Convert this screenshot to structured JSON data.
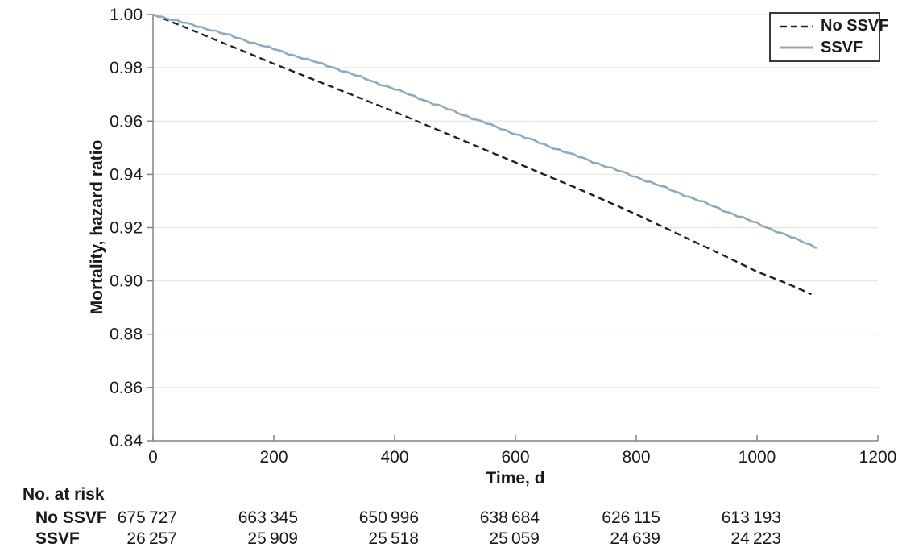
{
  "figure": {
    "xlabel": "Time, d",
    "ylabel": "Mortality, hazard ratio",
    "legend": [
      {
        "label": "No SSVF",
        "style": "dashed",
        "color": "#222222"
      },
      {
        "label": "SSVF",
        "style": "solid",
        "color": "#8faabe"
      }
    ]
  },
  "chart_data": {
    "type": "line",
    "title": "",
    "xlabel": "Time, d",
    "ylabel": "Mortality, hazard ratio",
    "xlim": [
      0,
      1200
    ],
    "ylim": [
      0.84,
      1.0
    ],
    "x_ticks": [
      0,
      200,
      400,
      600,
      800,
      1000,
      1200
    ],
    "y_ticks": [
      0.84,
      0.86,
      0.88,
      0.9,
      0.92,
      0.94,
      0.96,
      0.98,
      1.0
    ],
    "y_tick_labels": [
      "0.84",
      "0.86",
      "0.88",
      "0.90",
      "0.92",
      "0.94",
      "0.96",
      "0.98",
      "1.00"
    ],
    "grid": "horizontal",
    "legend_position": "top-right",
    "colors": {
      "grid": "#e8e8e8",
      "axis": "#828282",
      "text": "#1a1a1a"
    },
    "series": [
      {
        "name": "No SSVF",
        "style": "dashed",
        "color": "#222222",
        "x": [
          0,
          50,
          100,
          150,
          200,
          250,
          300,
          350,
          400,
          450,
          500,
          550,
          600,
          650,
          700,
          750,
          800,
          850,
          900,
          950,
          1000,
          1050,
          1090
        ],
        "y": [
          1.0,
          0.9955,
          0.9908,
          0.9862,
          0.9815,
          0.977,
          0.9725,
          0.968,
          0.9635,
          0.9587,
          0.954,
          0.9492,
          0.9445,
          0.9397,
          0.935,
          0.93,
          0.925,
          0.9197,
          0.9143,
          0.909,
          0.9035,
          0.899,
          0.895
        ]
      },
      {
        "name": "SSVF",
        "style": "solid",
        "color": "#8faabe",
        "x": [
          0,
          50,
          100,
          150,
          200,
          250,
          300,
          350,
          400,
          450,
          500,
          550,
          600,
          650,
          700,
          750,
          800,
          850,
          900,
          950,
          1000,
          1050,
          1100
        ],
        "y": [
          1.0,
          0.997,
          0.994,
          0.9905,
          0.987,
          0.9835,
          0.98,
          0.976,
          0.972,
          0.9678,
          0.9635,
          0.9593,
          0.9552,
          0.951,
          0.947,
          0.943,
          0.939,
          0.9348,
          0.9305,
          0.926,
          0.9216,
          0.917,
          0.9125
        ]
      }
    ]
  },
  "risk_table": {
    "title": "No. at risk",
    "times": [
      0,
      200,
      400,
      600,
      800,
      1000
    ],
    "rows": [
      {
        "label": "No SSVF",
        "values": [
          "675 727",
          "663 345",
          "650 996",
          "638 684",
          "626 115",
          "613 193"
        ]
      },
      {
        "label": "SSVF",
        "values": [
          "26 257",
          "25 909",
          "25 518",
          "25 059",
          "24 639",
          "24 223"
        ]
      }
    ]
  }
}
